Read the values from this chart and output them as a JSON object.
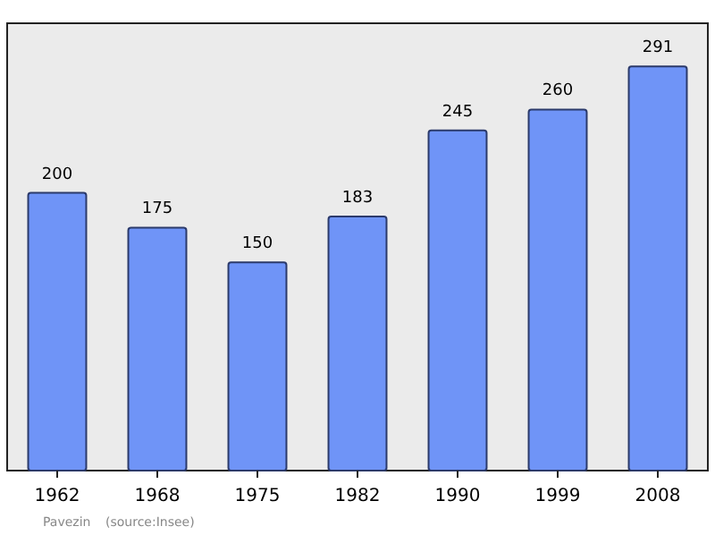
{
  "chart_data": {
    "type": "bar",
    "categories": [
      "1962",
      "1968",
      "1975",
      "1982",
      "1990",
      "1999",
      "2008"
    ],
    "values": [
      200,
      175,
      150,
      183,
      245,
      260,
      291
    ],
    "color": "#6f94f7",
    "data_labels": true,
    "annotations": [
      "Pavezin",
      "(source:Insee)"
    ]
  }
}
